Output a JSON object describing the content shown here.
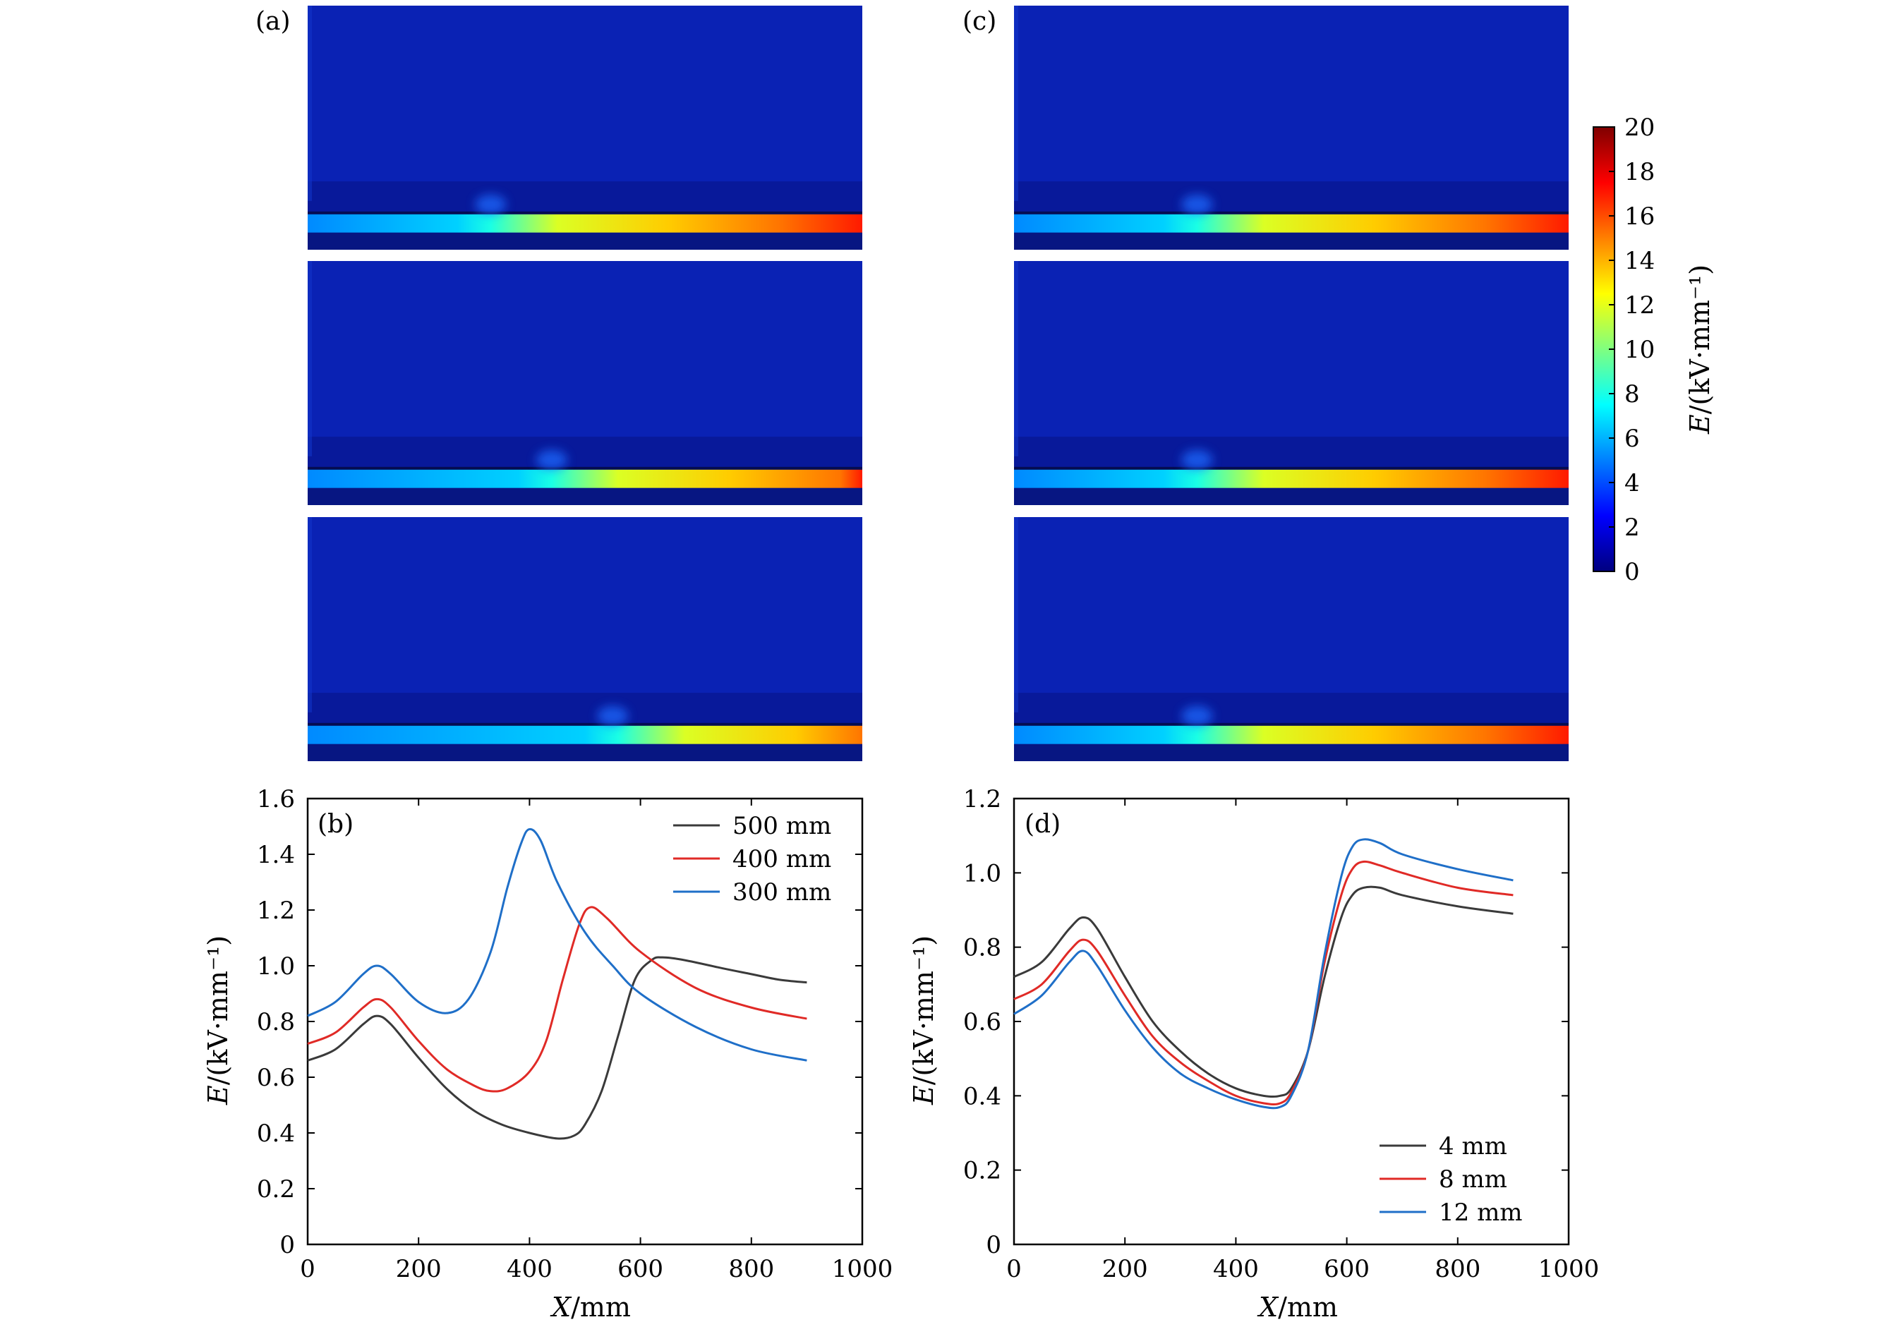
{
  "colorbar": {
    "ticks": [
      "0",
      "2",
      "4",
      "6",
      "8",
      "10",
      "12",
      "14",
      "16",
      "18",
      "20"
    ],
    "label_var": "E",
    "label_unit": "/(kV·mm⁻¹)",
    "range": [
      0,
      20
    ],
    "colormap": "jet"
  },
  "field_maps": [
    {
      "panel_label": "(a)",
      "maps": [
        {
          "transition_fraction": 0.33,
          "spot_fraction": 0.33,
          "end_value": 17
        },
        {
          "transition_fraction": 0.44,
          "spot_fraction": 0.44,
          "end_value": 17
        },
        {
          "transition_fraction": 0.56,
          "spot_fraction": 0.55,
          "end_value": 17
        }
      ]
    },
    {
      "panel_label": "(c)",
      "maps": [
        {
          "transition_fraction": 0.33,
          "spot_fraction": 0.33,
          "end_value": 17
        },
        {
          "transition_fraction": 0.33,
          "spot_fraction": 0.33,
          "end_value": 17
        },
        {
          "transition_fraction": 0.33,
          "spot_fraction": 0.33,
          "end_value": 17
        }
      ]
    }
  ],
  "chart_data": [
    {
      "panel_label": "(b)",
      "type": "line",
      "xlabel_var": "X",
      "xlabel_unit": "/mm",
      "ylabel_var": "E",
      "ylabel_unit": "/(kV·mm⁻¹)",
      "xlim": [
        0,
        1000
      ],
      "ylim": [
        0,
        1.6
      ],
      "x_ticks": [
        "0",
        "200",
        "400",
        "600",
        "800",
        "1000"
      ],
      "y_ticks": [
        "0",
        "0.2",
        "0.4",
        "0.6",
        "0.8",
        "1.0",
        "1.2",
        "1.4",
        "1.6"
      ],
      "legend_position": "top-right",
      "series": [
        {
          "name": "500 mm",
          "color": "#3a3a3a",
          "x": [
            0,
            50,
            100,
            125,
            150,
            200,
            250,
            300,
            350,
            400,
            450,
            480,
            500,
            530,
            560,
            590,
            620,
            640,
            680,
            750,
            800,
            850,
            900
          ],
          "y": [
            0.66,
            0.7,
            0.79,
            0.82,
            0.79,
            0.67,
            0.56,
            0.48,
            0.43,
            0.4,
            0.38,
            0.39,
            0.43,
            0.55,
            0.75,
            0.95,
            1.02,
            1.03,
            1.02,
            0.99,
            0.97,
            0.95,
            0.94
          ]
        },
        {
          "name": "400 mm",
          "color": "#e02a26",
          "x": [
            0,
            50,
            100,
            125,
            150,
            200,
            250,
            300,
            330,
            360,
            400,
            430,
            460,
            490,
            510,
            540,
            600,
            700,
            800,
            900
          ],
          "y": [
            0.72,
            0.76,
            0.85,
            0.88,
            0.85,
            0.73,
            0.63,
            0.57,
            0.55,
            0.56,
            0.62,
            0.73,
            0.95,
            1.15,
            1.21,
            1.17,
            1.05,
            0.92,
            0.85,
            0.81
          ]
        },
        {
          "name": "300 mm",
          "color": "#1f6fc8",
          "x": [
            0,
            50,
            100,
            125,
            150,
            200,
            250,
            290,
            330,
            360,
            385,
            400,
            420,
            450,
            500,
            550,
            600,
            700,
            800,
            900
          ],
          "y": [
            0.82,
            0.87,
            0.97,
            1.0,
            0.97,
            0.87,
            0.83,
            0.88,
            1.05,
            1.28,
            1.44,
            1.49,
            1.45,
            1.3,
            1.12,
            1.0,
            0.9,
            0.78,
            0.7,
            0.66
          ]
        }
      ]
    },
    {
      "panel_label": "(d)",
      "type": "line",
      "xlabel_var": "X",
      "xlabel_unit": "/mm",
      "ylabel_var": "E",
      "ylabel_unit": "/(kV·mm⁻¹)",
      "xlim": [
        0,
        1000
      ],
      "ylim": [
        0,
        1.2
      ],
      "x_ticks": [
        "0",
        "200",
        "400",
        "600",
        "800",
        "1000"
      ],
      "y_ticks": [
        "0",
        "0.2",
        "0.4",
        "0.6",
        "0.8",
        "1.0",
        "1.2"
      ],
      "legend_position": "bottom-right",
      "series": [
        {
          "name": "4 mm",
          "color": "#3a3a3a",
          "x": [
            0,
            50,
            100,
            125,
            150,
            200,
            250,
            300,
            350,
            400,
            450,
            480,
            500,
            530,
            560,
            590,
            610,
            630,
            660,
            700,
            800,
            900
          ],
          "y": [
            0.72,
            0.76,
            0.85,
            0.88,
            0.85,
            0.72,
            0.6,
            0.52,
            0.46,
            0.42,
            0.4,
            0.4,
            0.42,
            0.52,
            0.72,
            0.88,
            0.94,
            0.96,
            0.96,
            0.94,
            0.91,
            0.89
          ]
        },
        {
          "name": "8 mm",
          "color": "#e02a26",
          "x": [
            0,
            50,
            100,
            125,
            150,
            200,
            250,
            300,
            350,
            400,
            450,
            480,
            500,
            530,
            560,
            590,
            610,
            630,
            660,
            700,
            800,
            900
          ],
          "y": [
            0.66,
            0.7,
            0.79,
            0.82,
            0.79,
            0.67,
            0.56,
            0.49,
            0.44,
            0.4,
            0.38,
            0.38,
            0.41,
            0.52,
            0.76,
            0.94,
            1.01,
            1.03,
            1.02,
            1.0,
            0.96,
            0.94
          ]
        },
        {
          "name": "12 mm",
          "color": "#1f6fc8",
          "x": [
            0,
            50,
            100,
            125,
            150,
            200,
            250,
            300,
            350,
            400,
            450,
            480,
            500,
            530,
            560,
            590,
            610,
            630,
            660,
            700,
            800,
            900
          ],
          "y": [
            0.62,
            0.67,
            0.76,
            0.79,
            0.75,
            0.63,
            0.53,
            0.46,
            0.42,
            0.39,
            0.37,
            0.37,
            0.4,
            0.52,
            0.78,
            0.99,
            1.07,
            1.09,
            1.08,
            1.05,
            1.01,
            0.98
          ]
        }
      ]
    }
  ]
}
